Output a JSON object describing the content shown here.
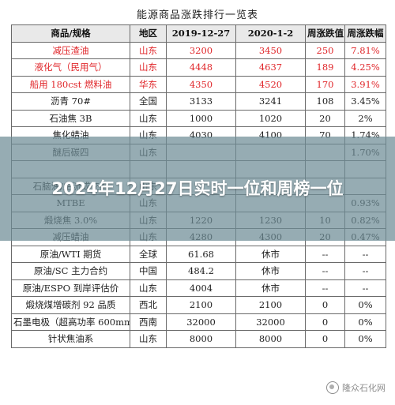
{
  "title": "能源商品涨跌排行一览表",
  "headers": [
    "商品/规格",
    "地区",
    "2019-12-27",
    "2020-1-2",
    "周涨跌值",
    "周涨跌幅"
  ],
  "rows": [
    {
      "product": "减压渣油",
      "region": "山东",
      "v1": "3200",
      "v2": "3450",
      "change": "250",
      "pct": "7.81%",
      "highlight": true
    },
    {
      "product": "液化气（民用气）",
      "region": "山东",
      "v1": "4448",
      "v2": "4637",
      "change": "189",
      "pct": "4.25%",
      "highlight": true
    },
    {
      "product": "船用 180cst 燃料油",
      "region": "华东",
      "v1": "4350",
      "v2": "4520",
      "change": "170",
      "pct": "3.91%",
      "highlight": true
    },
    {
      "product": "沥青 70#",
      "region": "全国",
      "v1": "3133",
      "v2": "3241",
      "change": "108",
      "pct": "3.45%",
      "highlight": false
    },
    {
      "product": "石油焦 3B",
      "region": "山东",
      "v1": "1000",
      "v2": "1020",
      "change": "20",
      "pct": "2%",
      "highlight": false
    },
    {
      "product": "焦化蜡油",
      "region": "山东",
      "v1": "4030",
      "v2": "4100",
      "change": "70",
      "pct": "1.74%",
      "highlight": false
    },
    {
      "product": "醚后碳四",
      "region": "山东",
      "v1": "",
      "v2": "",
      "change": "",
      "pct": "1.70%",
      "highlight": false
    },
    {
      "product": "",
      "region": "",
      "v1": "",
      "v2": "",
      "change": "",
      "pct": "",
      "highlight": false
    },
    {
      "product": "石脑油/主流成交价",
      "region": "山东",
      "v1": "",
      "v2": "",
      "change": "",
      "pct": "",
      "highlight": false
    },
    {
      "product": "MTBE",
      "region": "山东",
      "v1": "",
      "v2": "",
      "change": "",
      "pct": "0.93%",
      "highlight": false
    },
    {
      "product": "煅烧焦 3.0%",
      "region": "山东",
      "v1": "1220",
      "v2": "1230",
      "change": "10",
      "pct": "0.82%",
      "highlight": false
    },
    {
      "product": "减压蜡油",
      "region": "山东",
      "v1": "4280",
      "v2": "4300",
      "change": "20",
      "pct": "0.47%",
      "highlight": false
    },
    {
      "product": "原油/WTI 期货",
      "region": "全球",
      "v1": "61.68",
      "v2": "休市",
      "change": "--",
      "pct": "--",
      "highlight": false
    },
    {
      "product": "原油/SC 主力合约",
      "region": "中国",
      "v1": "484.2",
      "v2": "休市",
      "change": "--",
      "pct": "--",
      "highlight": false
    },
    {
      "product": "原油/ESPO 到岸评估价",
      "region": "山东",
      "v1": "4004",
      "v2": "休市",
      "change": "--",
      "pct": "--",
      "highlight": false
    },
    {
      "product": "煅烧煤增碳剂 92 品质",
      "region": "西北",
      "v1": "2100",
      "v2": "2100",
      "change": "0",
      "pct": "0%",
      "highlight": false
    },
    {
      "product": "石墨电极（超高功率 600mm）",
      "region": "西南",
      "v1": "32000",
      "v2": "32000",
      "change": "0",
      "pct": "0%",
      "highlight": false
    },
    {
      "product": "针状焦油系",
      "region": "山东",
      "v1": "8000",
      "v2": "8000",
      "change": "0",
      "pct": "0%",
      "highlight": false
    }
  ],
  "banner": "2024年12月27日实时一位和周榜一位",
  "watermark": "隆众石化网"
}
